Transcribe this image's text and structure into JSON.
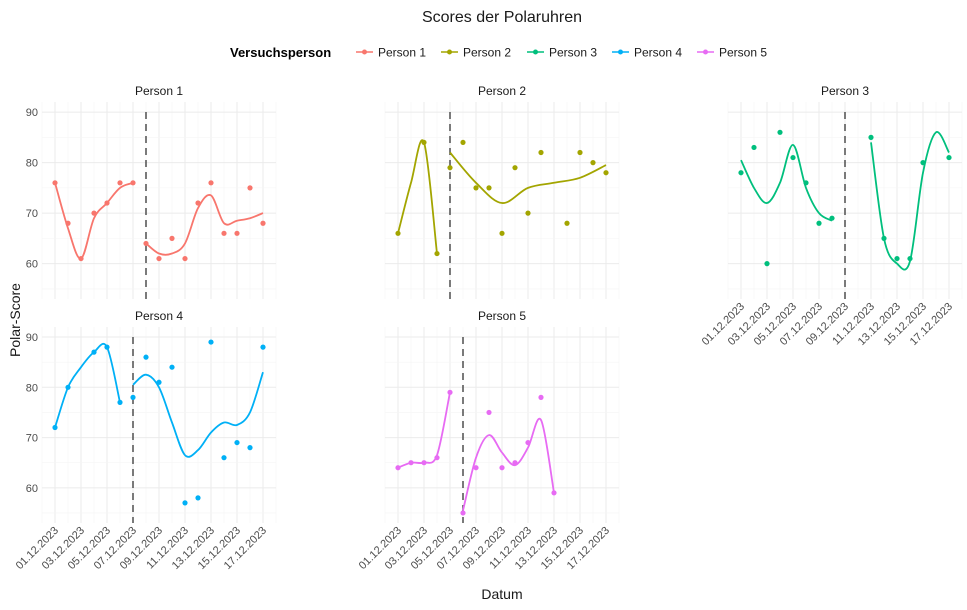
{
  "chart_data": {
    "type": "line",
    "title": "Scores der Polaruhren",
    "xlabel": "Datum",
    "ylabel": "Polar-Score",
    "legend": {
      "title": "Versuchsperson",
      "position": "top",
      "entries": [
        "Person 1",
        "Person 2",
        "Person 3",
        "Person 4",
        "Person 5"
      ]
    },
    "colors": {
      "Person 1": "#F8766D",
      "Person 2": "#A3A500",
      "Person 3": "#00BF7D",
      "Person 4": "#00B0F6",
      "Person 5": "#E76BF3",
      "vline": "#595959",
      "grid_major": "#ebebeb",
      "grid_minor": "#f5f5f5"
    },
    "ylim": [
      53,
      92
    ],
    "y_ticks": [
      60,
      70,
      80,
      90
    ],
    "x_tick_labels": [
      "01.12.2023",
      "03.12.2023",
      "05.12.2023",
      "07.12.2023",
      "09.12.2023",
      "11.12.2023",
      "13.12.2023",
      "15.12.2023",
      "17.12.2023"
    ],
    "grid": true,
    "panels": [
      {
        "name": "Person 1",
        "xlim": [
          "2023-11-30",
          "2023-12-18"
        ],
        "vline": "2023-12-08",
        "points": [
          {
            "x": "2023-12-01",
            "y": 76
          },
          {
            "x": "2023-12-02",
            "y": 68
          },
          {
            "x": "2023-12-03",
            "y": 61
          },
          {
            "x": "2023-12-04",
            "y": 70
          },
          {
            "x": "2023-12-05",
            "y": 72
          },
          {
            "x": "2023-12-06",
            "y": 76
          },
          {
            "x": "2023-12-07",
            "y": 76
          },
          {
            "x": "2023-12-08",
            "y": 64
          },
          {
            "x": "2023-12-09",
            "y": 61
          },
          {
            "x": "2023-12-10",
            "y": 65
          },
          {
            "x": "2023-12-11",
            "y": 61
          },
          {
            "x": "2023-12-12",
            "y": 72
          },
          {
            "x": "2023-12-13",
            "y": 76
          },
          {
            "x": "2023-12-14",
            "y": 66
          },
          {
            "x": "2023-12-15",
            "y": 66
          },
          {
            "x": "2023-12-16",
            "y": 75
          },
          {
            "x": "2023-12-17",
            "y": 68
          }
        ],
        "smooth": [
          [
            {
              "x": "2023-12-01",
              "y": 76
            },
            {
              "x": "2023-12-02",
              "y": 67
            },
            {
              "x": "2023-12-03",
              "y": 61
            },
            {
              "x": "2023-12-04",
              "y": 69
            },
            {
              "x": "2023-12-05",
              "y": 72
            },
            {
              "x": "2023-12-06",
              "y": 75
            },
            {
              "x": "2023-12-07",
              "y": 76
            }
          ],
          [
            {
              "x": "2023-12-08",
              "y": 64
            },
            {
              "x": "2023-12-09",
              "y": 62
            },
            {
              "x": "2023-12-10",
              "y": 62
            },
            {
              "x": "2023-12-11",
              "y": 64
            },
            {
              "x": "2023-12-12",
              "y": 71
            },
            {
              "x": "2023-12-13",
              "y": 73.5
            },
            {
              "x": "2023-12-14",
              "y": 68
            },
            {
              "x": "2023-12-15",
              "y": 68.5
            },
            {
              "x": "2023-12-16",
              "y": 69
            },
            {
              "x": "2023-12-17",
              "y": 70
            }
          ]
        ]
      },
      {
        "name": "Person 2",
        "xlim": [
          "2023-11-30",
          "2023-12-18"
        ],
        "vline": "2023-12-05",
        "points": [
          {
            "x": "2023-12-01",
            "y": 66
          },
          {
            "x": "2023-12-03",
            "y": 84
          },
          {
            "x": "2023-12-04",
            "y": 62
          },
          {
            "x": "2023-12-05",
            "y": 79
          },
          {
            "x": "2023-12-06",
            "y": 84
          },
          {
            "x": "2023-12-07",
            "y": 75
          },
          {
            "x": "2023-12-08",
            "y": 75
          },
          {
            "x": "2023-12-09",
            "y": 66
          },
          {
            "x": "2023-12-10",
            "y": 79
          },
          {
            "x": "2023-12-11",
            "y": 70
          },
          {
            "x": "2023-12-12",
            "y": 82
          },
          {
            "x": "2023-12-14",
            "y": 68
          },
          {
            "x": "2023-12-15",
            "y": 82
          },
          {
            "x": "2023-12-16",
            "y": 80
          },
          {
            "x": "2023-12-17",
            "y": 78
          }
        ],
        "smooth": [
          [
            {
              "x": "2023-12-01",
              "y": 66
            },
            {
              "x": "2023-12-02",
              "y": 76
            },
            {
              "x": "2023-12-03",
              "y": 84
            },
            {
              "x": "2023-12-04",
              "y": 62
            }
          ],
          [
            {
              "x": "2023-12-05",
              "y": 82
            },
            {
              "x": "2023-12-07",
              "y": 76
            },
            {
              "x": "2023-12-09",
              "y": 72
            },
            {
              "x": "2023-12-11",
              "y": 75
            },
            {
              "x": "2023-12-13",
              "y": 76
            },
            {
              "x": "2023-12-15",
              "y": 77
            },
            {
              "x": "2023-12-17",
              "y": 79.5
            }
          ]
        ]
      },
      {
        "name": "Person 3",
        "xlim": [
          "2023-11-30",
          "2023-12-18"
        ],
        "vline": "2023-12-09",
        "points": [
          {
            "x": "2023-12-01",
            "y": 78
          },
          {
            "x": "2023-12-02",
            "y": 83
          },
          {
            "x": "2023-12-03",
            "y": 60
          },
          {
            "x": "2023-12-04",
            "y": 86
          },
          {
            "x": "2023-12-05",
            "y": 81
          },
          {
            "x": "2023-12-06",
            "y": 76
          },
          {
            "x": "2023-12-07",
            "y": 68
          },
          {
            "x": "2023-12-08",
            "y": 69
          },
          {
            "x": "2023-12-11",
            "y": 85
          },
          {
            "x": "2023-12-12",
            "y": 65
          },
          {
            "x": "2023-12-13",
            "y": 61
          },
          {
            "x": "2023-12-14",
            "y": 61
          },
          {
            "x": "2023-12-15",
            "y": 80
          },
          {
            "x": "2023-12-17",
            "y": 81
          }
        ],
        "smooth": [
          [
            {
              "x": "2023-12-01",
              "y": 80.5
            },
            {
              "x": "2023-12-02",
              "y": 75
            },
            {
              "x": "2023-12-03",
              "y": 72
            },
            {
              "x": "2023-12-04",
              "y": 76
            },
            {
              "x": "2023-12-05",
              "y": 83.5
            },
            {
              "x": "2023-12-06",
              "y": 75
            },
            {
              "x": "2023-12-07",
              "y": 70
            },
            {
              "x": "2023-12-08",
              "y": 68.5
            }
          ],
          [
            {
              "x": "2023-12-11",
              "y": 84
            },
            {
              "x": "2023-12-12",
              "y": 65
            },
            {
              "x": "2023-12-13",
              "y": 60
            },
            {
              "x": "2023-12-14",
              "y": 60.5
            },
            {
              "x": "2023-12-15",
              "y": 78
            },
            {
              "x": "2023-12-16",
              "y": 86
            },
            {
              "x": "2023-12-17",
              "y": 82
            }
          ]
        ]
      },
      {
        "name": "Person 4",
        "xlim": [
          "2023-11-30",
          "2023-12-18"
        ],
        "vline": "2023-12-07",
        "points": [
          {
            "x": "2023-12-01",
            "y": 72
          },
          {
            "x": "2023-12-02",
            "y": 80
          },
          {
            "x": "2023-12-04",
            "y": 87
          },
          {
            "x": "2023-12-05",
            "y": 88
          },
          {
            "x": "2023-12-06",
            "y": 77
          },
          {
            "x": "2023-12-07",
            "y": 78
          },
          {
            "x": "2023-12-08",
            "y": 86
          },
          {
            "x": "2023-12-09",
            "y": 81
          },
          {
            "x": "2023-12-10",
            "y": 84
          },
          {
            "x": "2023-12-11",
            "y": 57
          },
          {
            "x": "2023-12-12",
            "y": 58
          },
          {
            "x": "2023-12-13",
            "y": 89
          },
          {
            "x": "2023-12-14",
            "y": 66
          },
          {
            "x": "2023-12-15",
            "y": 69
          },
          {
            "x": "2023-12-16",
            "y": 68
          },
          {
            "x": "2023-12-17",
            "y": 88
          }
        ],
        "smooth": [
          [
            {
              "x": "2023-12-01",
              "y": 72
            },
            {
              "x": "2023-12-02",
              "y": 80
            },
            {
              "x": "2023-12-03",
              "y": 84
            },
            {
              "x": "2023-12-04",
              "y": 87
            },
            {
              "x": "2023-12-05",
              "y": 88
            },
            {
              "x": "2023-12-06",
              "y": 77
            }
          ],
          [
            {
              "x": "2023-12-07",
              "y": 80.5
            },
            {
              "x": "2023-12-08",
              "y": 82.5
            },
            {
              "x": "2023-12-09",
              "y": 80
            },
            {
              "x": "2023-12-10",
              "y": 73
            },
            {
              "x": "2023-12-11",
              "y": 66.5
            },
            {
              "x": "2023-12-12",
              "y": 67.5
            },
            {
              "x": "2023-12-13",
              "y": 71
            },
            {
              "x": "2023-12-14",
              "y": 73
            },
            {
              "x": "2023-12-15",
              "y": 72.5
            },
            {
              "x": "2023-12-16",
              "y": 75
            },
            {
              "x": "2023-12-17",
              "y": 83
            }
          ]
        ]
      },
      {
        "name": "Person 5",
        "xlim": [
          "2023-11-30",
          "2023-12-18"
        ],
        "vline": "2023-12-06",
        "points": [
          {
            "x": "2023-12-01",
            "y": 64
          },
          {
            "x": "2023-12-02",
            "y": 65
          },
          {
            "x": "2023-12-03",
            "y": 65
          },
          {
            "x": "2023-12-04",
            "y": 66
          },
          {
            "x": "2023-12-05",
            "y": 79
          },
          {
            "x": "2023-12-06",
            "y": 55
          },
          {
            "x": "2023-12-07",
            "y": 64
          },
          {
            "x": "2023-12-08",
            "y": 75
          },
          {
            "x": "2023-12-09",
            "y": 64
          },
          {
            "x": "2023-12-10",
            "y": 65
          },
          {
            "x": "2023-12-11",
            "y": 69
          },
          {
            "x": "2023-12-12",
            "y": 78
          },
          {
            "x": "2023-12-13",
            "y": 59
          }
        ],
        "smooth": [
          [
            {
              "x": "2023-12-01",
              "y": 64
            },
            {
              "x": "2023-12-02",
              "y": 65
            },
            {
              "x": "2023-12-03",
              "y": 65
            },
            {
              "x": "2023-12-04",
              "y": 66.5
            },
            {
              "x": "2023-12-05",
              "y": 79
            }
          ],
          [
            {
              "x": "2023-12-06",
              "y": 55.5
            },
            {
              "x": "2023-12-07",
              "y": 66
            },
            {
              "x": "2023-12-08",
              "y": 70.5
            },
            {
              "x": "2023-12-09",
              "y": 67
            },
            {
              "x": "2023-12-10",
              "y": 64.5
            },
            {
              "x": "2023-12-11",
              "y": 68
            },
            {
              "x": "2023-12-12",
              "y": 73.5
            },
            {
              "x": "2023-12-13",
              "y": 59
            }
          ]
        ]
      }
    ]
  }
}
